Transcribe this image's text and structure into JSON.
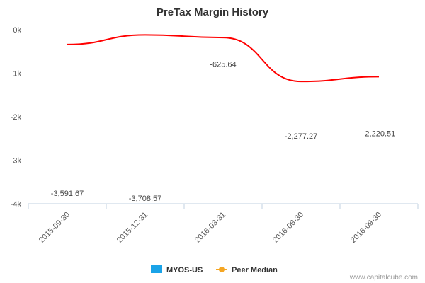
{
  "chart_data": {
    "type": "bar",
    "title": "PreTax Margin History",
    "categories": [
      "2015-09-30",
      "2015-12-31",
      "2016-03-31",
      "2016-06-30",
      "2016-09-30"
    ],
    "series": [
      {
        "name": "MYOS-US",
        "type": "bar",
        "legend_color": "#1aa3e8",
        "bar_color": "#ff0000",
        "values": [
          -3591.67,
          -3708.57,
          -625.64,
          -2277.27,
          -2220.51
        ],
        "labels": [
          "-3,591.67",
          "-3,708.57",
          "-625.64",
          "-2,277.27",
          "-2,220.51"
        ]
      },
      {
        "name": "Peer Median",
        "type": "line",
        "legend_color": "#f5a623",
        "line_color": "#ff0000",
        "smooth": true,
        "values": [
          -340,
          -120,
          -180,
          -1190,
          -1080
        ]
      }
    ],
    "ylim": [
      -4000,
      0
    ],
    "yticks": [
      0,
      -1000,
      -2000,
      -3000,
      -4000
    ],
    "ytick_labels": [
      "0k",
      "-1k",
      "-2k",
      "-3k",
      "-4k"
    ],
    "xlabel": "",
    "ylabel": "",
    "grid": false,
    "legend": "bottom-center"
  },
  "footer": {
    "credit": "www.capitalcube.com"
  }
}
